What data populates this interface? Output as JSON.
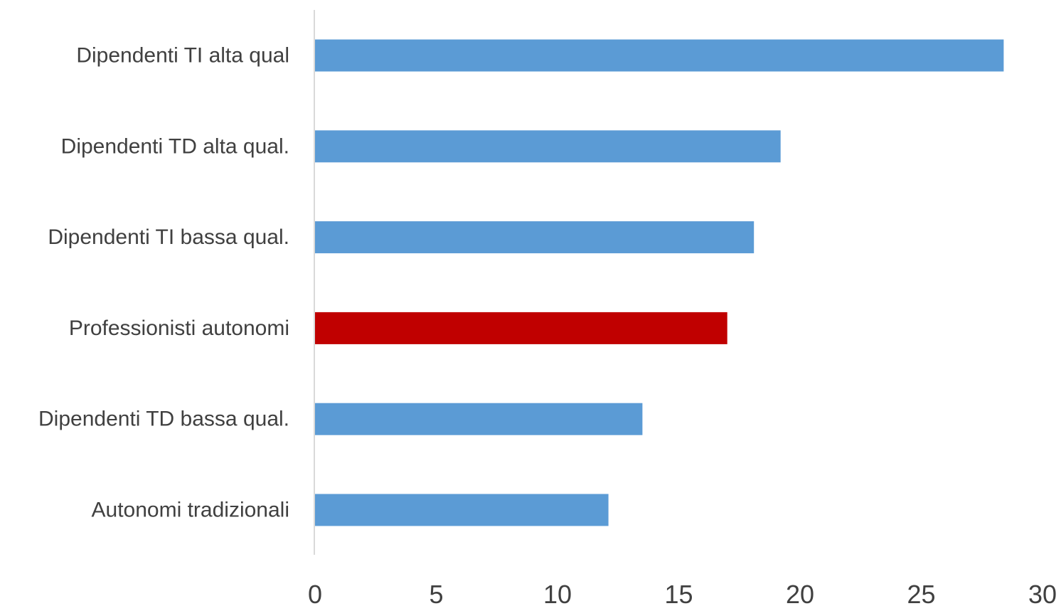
{
  "chart_data": {
    "type": "bar",
    "orientation": "horizontal",
    "title": "",
    "xlabel": "",
    "ylabel": "",
    "categories": [
      "Dipendenti TI alta qual",
      "Dipendenti TD alta qual.",
      "Dipendenti TI bassa qual.",
      "Professionisti autonomi",
      "Dipendenti TD bassa qual.",
      "Autonomi tradizionali"
    ],
    "values": [
      28.4,
      19.2,
      18.1,
      17.0,
      13.5,
      12.1
    ],
    "bar_colors": [
      "#5B9BD5",
      "#5B9BD5",
      "#5B9BD5",
      "#C00000",
      "#5B9BD5",
      "#5B9BD5"
    ],
    "xlim": [
      0,
      30
    ],
    "xticks": [
      0,
      5,
      10,
      15,
      20,
      25,
      30
    ],
    "grid": false,
    "legend": "none"
  }
}
